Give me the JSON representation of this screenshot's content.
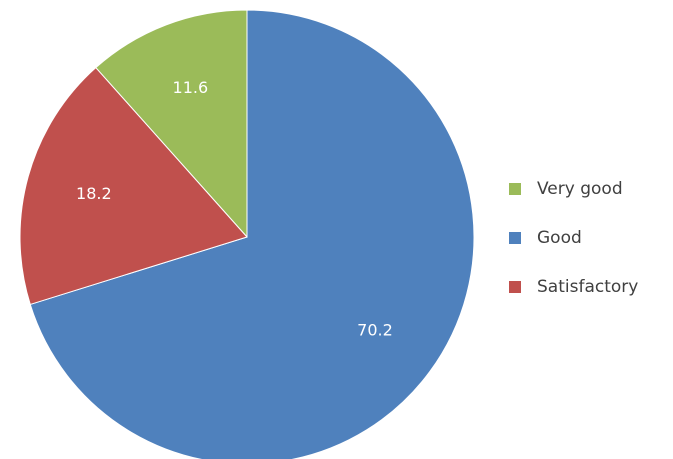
{
  "chart_data": {
    "type": "pie",
    "categories": [
      "Very good",
      "Good",
      "Satisfactory"
    ],
    "values": [
      11.6,
      70.2,
      18.2
    ],
    "colors": [
      "#9bbb59",
      "#4f81bd",
      "#c0504d"
    ],
    "legend": "right"
  }
}
